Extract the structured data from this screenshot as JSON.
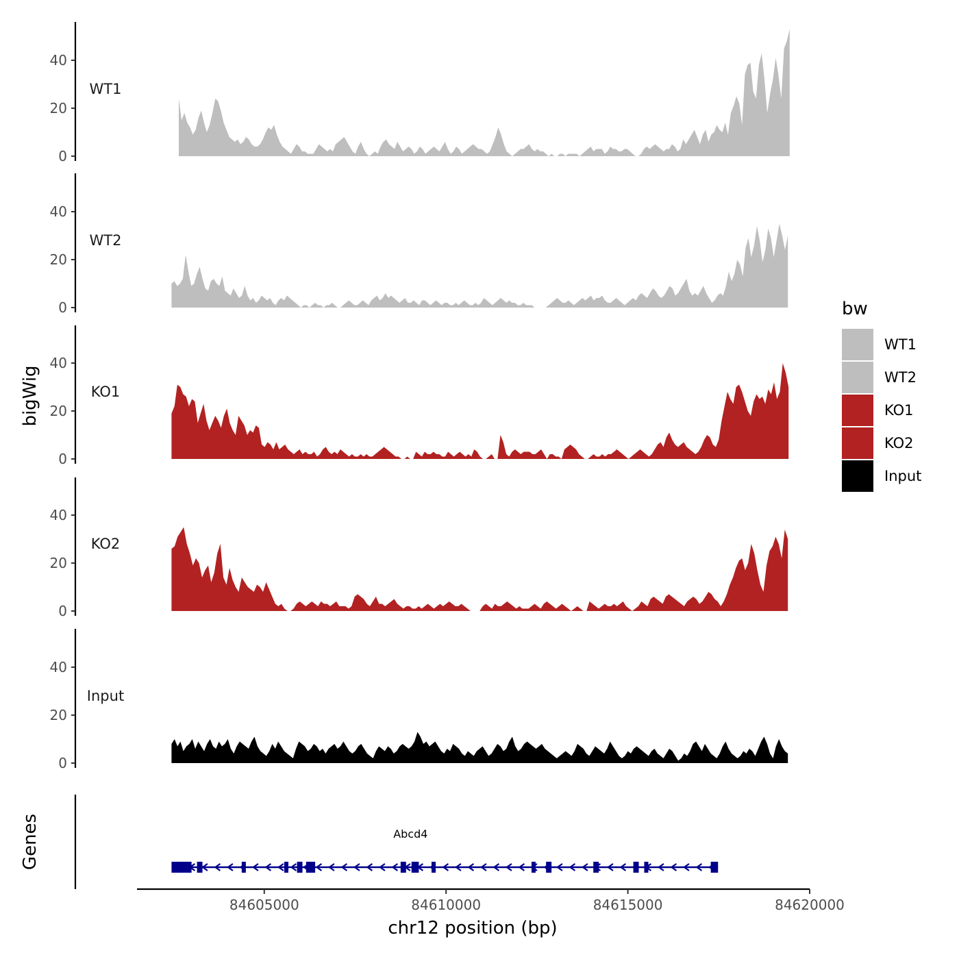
{
  "chart_data": {
    "type": "area",
    "x_axis": {
      "label": "chr12 position (bp)",
      "range": [
        84601500,
        84620000
      ],
      "ticks": [
        84605000,
        84610000,
        84615000,
        84620000
      ],
      "tick_labels": [
        "84605000",
        "84610000",
        "84615000",
        "84620000"
      ]
    },
    "y_axis": {
      "label": "bigWig",
      "range": [
        0,
        55
      ],
      "ticks": [
        0,
        20,
        40
      ],
      "tick_labels": [
        "0",
        "20",
        "40"
      ]
    },
    "tracks": [
      {
        "name": "WT1",
        "color": "#bebebe",
        "start": 84602650,
        "end": 84619450,
        "values": [
          24,
          15,
          18,
          14,
          12,
          9,
          11,
          16,
          19,
          14,
          10,
          13,
          18,
          24,
          23,
          19,
          14,
          11,
          8,
          7,
          6,
          7,
          5,
          6,
          8,
          7,
          5,
          4,
          4,
          5,
          7,
          10,
          12,
          11,
          13,
          9,
          6,
          4,
          3,
          2,
          1,
          3,
          5,
          4,
          2,
          2,
          1,
          1,
          1,
          3,
          5,
          4,
          3,
          2,
          3,
          2,
          5,
          6,
          7,
          8,
          6,
          4,
          2,
          1,
          4,
          6,
          3,
          1,
          0,
          1,
          2,
          1,
          4,
          6,
          7,
          5,
          4,
          3,
          6,
          4,
          2,
          3,
          4,
          3,
          1,
          2,
          4,
          3,
          1,
          2,
          3,
          4,
          3,
          2,
          4,
          6,
          3,
          1,
          2,
          4,
          3,
          1,
          2,
          3,
          4,
          5,
          4,
          3,
          3,
          2,
          1,
          2,
          5,
          8,
          12,
          9,
          5,
          2,
          1,
          0,
          1,
          2,
          3,
          3,
          4,
          5,
          3,
          2,
          3,
          2,
          2,
          1,
          0,
          1,
          0,
          0,
          1,
          1,
          0,
          1,
          1,
          1,
          1,
          0,
          1,
          2,
          3,
          4,
          2,
          3,
          3,
          3,
          1,
          2,
          4,
          3,
          3,
          2,
          2,
          3,
          3,
          2,
          1,
          0,
          0,
          1,
          3,
          4,
          3,
          4,
          5,
          4,
          3,
          2,
          3,
          3,
          5,
          4,
          2,
          3,
          7,
          5,
          7,
          9,
          11,
          8,
          5,
          9,
          11,
          6,
          9,
          10,
          13,
          11,
          10,
          14,
          9,
          18,
          21,
          25,
          22,
          13,
          34,
          38,
          39,
          27,
          24,
          38,
          43,
          32,
          18,
          26,
          32,
          41,
          34,
          24,
          45,
          48,
          53
        ]
      },
      {
        "name": "WT2",
        "color": "#bebebe",
        "start": 84602450,
        "end": 84619400,
        "values": [
          10,
          11,
          9,
          10,
          12,
          22,
          15,
          9,
          10,
          14,
          17,
          12,
          8,
          7,
          11,
          12,
          10,
          9,
          13,
          7,
          6,
          5,
          8,
          6,
          4,
          5,
          9,
          5,
          3,
          4,
          2,
          3,
          5,
          4,
          3,
          4,
          2,
          1,
          3,
          4,
          3,
          5,
          4,
          3,
          2,
          1,
          0,
          1,
          1,
          0,
          1,
          2,
          1,
          1,
          0,
          1,
          1,
          2,
          1,
          0,
          0,
          1,
          2,
          3,
          2,
          1,
          1,
          2,
          3,
          2,
          1,
          3,
          4,
          5,
          3,
          4,
          6,
          4,
          5,
          4,
          3,
          2,
          3,
          4,
          2,
          2,
          3,
          2,
          1,
          3,
          3,
          2,
          1,
          2,
          3,
          2,
          1,
          2,
          2,
          1,
          1,
          2,
          1,
          2,
          3,
          2,
          1,
          1,
          2,
          1,
          2,
          4,
          3,
          2,
          1,
          2,
          3,
          4,
          3,
          2,
          3,
          2,
          2,
          1,
          1,
          2,
          1,
          1,
          1,
          0,
          0,
          0,
          0,
          0,
          1,
          2,
          3,
          4,
          3,
          2,
          2,
          3,
          2,
          1,
          2,
          3,
          4,
          3,
          4,
          5,
          3,
          4,
          4,
          5,
          3,
          2,
          2,
          3,
          4,
          3,
          2,
          1,
          2,
          3,
          4,
          3,
          5,
          6,
          5,
          4,
          6,
          8,
          7,
          5,
          4,
          5,
          7,
          9,
          8,
          5,
          6,
          8,
          10,
          12,
          7,
          5,
          6,
          5,
          7,
          9,
          6,
          4,
          2,
          3,
          5,
          6,
          5,
          9,
          15,
          11,
          14,
          20,
          18,
          13,
          25,
          29,
          21,
          26,
          34,
          28,
          19,
          24,
          33,
          29,
          21,
          28,
          35,
          30,
          24,
          30
        ]
      },
      {
        "name": "KO1",
        "color": "#b22222",
        "start": 84602450,
        "end": 84619420,
        "values": [
          19,
          22,
          31,
          30,
          27,
          26,
          22,
          25,
          24,
          15,
          19,
          23,
          16,
          12,
          15,
          18,
          16,
          13,
          18,
          21,
          15,
          12,
          10,
          18,
          16,
          14,
          10,
          12,
          11,
          14,
          13,
          6,
          5,
          7,
          6,
          4,
          7,
          4,
          5,
          6,
          4,
          3,
          2,
          3,
          4,
          2,
          3,
          2,
          2,
          3,
          1,
          2,
          4,
          5,
          3,
          2,
          3,
          2,
          4,
          3,
          2,
          1,
          2,
          1,
          1,
          2,
          1,
          2,
          1,
          1,
          2,
          3,
          4,
          5,
          4,
          3,
          2,
          1,
          1,
          0,
          0,
          1,
          0,
          0,
          3,
          2,
          1,
          3,
          2,
          2,
          3,
          2,
          2,
          1,
          1,
          3,
          2,
          1,
          2,
          3,
          2,
          1,
          2,
          1,
          4,
          3,
          1,
          0,
          0,
          1,
          2,
          0,
          0,
          10,
          7,
          2,
          1,
          3,
          4,
          3,
          2,
          3,
          3,
          3,
          2,
          2,
          3,
          4,
          2,
          0,
          2,
          2,
          1,
          1,
          0,
          4,
          5,
          6,
          5,
          4,
          2,
          1,
          0,
          0,
          1,
          2,
          1,
          1,
          2,
          1,
          2,
          2,
          3,
          4,
          3,
          2,
          1,
          0,
          1,
          2,
          3,
          4,
          3,
          2,
          1,
          2,
          4,
          6,
          7,
          5,
          9,
          11,
          8,
          6,
          5,
          6,
          7,
          5,
          4,
          3,
          2,
          3,
          5,
          8,
          10,
          9,
          6,
          5,
          8,
          16,
          22,
          28,
          25,
          23,
          30,
          31,
          28,
          24,
          20,
          18,
          24,
          27,
          25,
          26,
          23,
          29,
          27,
          32,
          25,
          28,
          40,
          36,
          30
        ]
      },
      {
        "name": "KO2",
        "color": "#b22222",
        "start": 84602450,
        "end": 84619400,
        "values": [
          26,
          27,
          31,
          33,
          35,
          28,
          24,
          19,
          22,
          20,
          14,
          17,
          19,
          12,
          16,
          24,
          28,
          14,
          11,
          18,
          13,
          10,
          8,
          14,
          12,
          10,
          9,
          8,
          11,
          10,
          8,
          12,
          9,
          6,
          3,
          2,
          3,
          1,
          0,
          0,
          1,
          3,
          4,
          3,
          2,
          3,
          4,
          3,
          2,
          4,
          3,
          3,
          2,
          3,
          4,
          2,
          2,
          2,
          1,
          2,
          6,
          7,
          6,
          5,
          3,
          2,
          4,
          6,
          3,
          3,
          2,
          3,
          4,
          5,
          3,
          2,
          1,
          2,
          2,
          1,
          1,
          2,
          1,
          2,
          3,
          2,
          1,
          2,
          3,
          2,
          3,
          4,
          3,
          2,
          2,
          3,
          2,
          1,
          0,
          0,
          0,
          0,
          2,
          3,
          2,
          1,
          3,
          2,
          2,
          3,
          4,
          3,
          2,
          1,
          2,
          1,
          1,
          1,
          2,
          3,
          2,
          1,
          3,
          4,
          3,
          2,
          1,
          2,
          3,
          2,
          1,
          0,
          1,
          2,
          1,
          0,
          0,
          4,
          3,
          2,
          1,
          2,
          3,
          2,
          2,
          3,
          2,
          3,
          4,
          2,
          1,
          0,
          1,
          2,
          4,
          3,
          2,
          5,
          6,
          5,
          4,
          3,
          6,
          7,
          6,
          5,
          4,
          3,
          2,
          4,
          5,
          6,
          5,
          3,
          4,
          6,
          8,
          7,
          5,
          4,
          2,
          4,
          7,
          11,
          14,
          18,
          21,
          22,
          17,
          20,
          28,
          24,
          17,
          11,
          8,
          19,
          25,
          27,
          31,
          28,
          22,
          34,
          30
        ]
      },
      {
        "name": "Input",
        "color": "#000000",
        "start": 84602450,
        "end": 84619400,
        "values": [
          8,
          10,
          7,
          9,
          5,
          7,
          8,
          10,
          6,
          9,
          7,
          5,
          8,
          10,
          7,
          6,
          9,
          7,
          8,
          10,
          6,
          4,
          7,
          9,
          8,
          7,
          6,
          9,
          11,
          7,
          5,
          4,
          3,
          5,
          8,
          6,
          9,
          7,
          5,
          4,
          3,
          2,
          6,
          9,
          8,
          7,
          5,
          6,
          8,
          7,
          5,
          6,
          4,
          6,
          7,
          8,
          6,
          7,
          9,
          7,
          5,
          4,
          5,
          7,
          8,
          6,
          4,
          3,
          2,
          5,
          7,
          6,
          5,
          7,
          6,
          4,
          5,
          7,
          8,
          7,
          6,
          7,
          9,
          13,
          11,
          8,
          9,
          7,
          8,
          9,
          7,
          5,
          4,
          6,
          5,
          8,
          7,
          6,
          4,
          3,
          5,
          4,
          3,
          5,
          6,
          7,
          5,
          3,
          4,
          6,
          8,
          7,
          5,
          6,
          9,
          11,
          7,
          5,
          6,
          8,
          9,
          8,
          7,
          6,
          7,
          8,
          6,
          5,
          4,
          3,
          2,
          3,
          4,
          5,
          4,
          3,
          5,
          8,
          7,
          6,
          4,
          3,
          5,
          7,
          6,
          5,
          4,
          6,
          9,
          7,
          5,
          3,
          2,
          3,
          5,
          4,
          6,
          7,
          6,
          5,
          4,
          3,
          5,
          6,
          4,
          3,
          2,
          4,
          6,
          5,
          3,
          1,
          2,
          4,
          3,
          5,
          8,
          9,
          7,
          5,
          8,
          6,
          4,
          3,
          2,
          4,
          7,
          9,
          6,
          4,
          3,
          2,
          3,
          5,
          4,
          6,
          5,
          3,
          6,
          9,
          11,
          8,
          4,
          2,
          7,
          10,
          7,
          5,
          4
        ]
      }
    ],
    "legend": {
      "title": "bw",
      "position": "right",
      "items": [
        {
          "label": "WT1",
          "color": "#bebebe"
        },
        {
          "label": "WT2",
          "color": "#bebebe"
        },
        {
          "label": "KO1",
          "color": "#b22222"
        },
        {
          "label": "KO2",
          "color": "#b22222"
        },
        {
          "label": "Input",
          "color": "#000000"
        }
      ]
    },
    "gene_track": {
      "label": "Genes",
      "gene_name": "Abcd4",
      "strand": "-",
      "start": 84602450,
      "end": 84617480,
      "color": "#00008b",
      "exons": [
        [
          84602450,
          84603000
        ],
        [
          84603150,
          84603300
        ],
        [
          84604380,
          84604420
        ],
        [
          84605550,
          84605590
        ],
        [
          84605900,
          84606050
        ],
        [
          84606150,
          84606400
        ],
        [
          84608750,
          84608900
        ],
        [
          84609050,
          84609250
        ],
        [
          84609600,
          84609650
        ],
        [
          84612350,
          84612450
        ],
        [
          84612750,
          84612900
        ],
        [
          84614050,
          84614200
        ],
        [
          84615150,
          84615300
        ],
        [
          84615450,
          84615550
        ],
        [
          84617280,
          84617480
        ]
      ]
    }
  }
}
